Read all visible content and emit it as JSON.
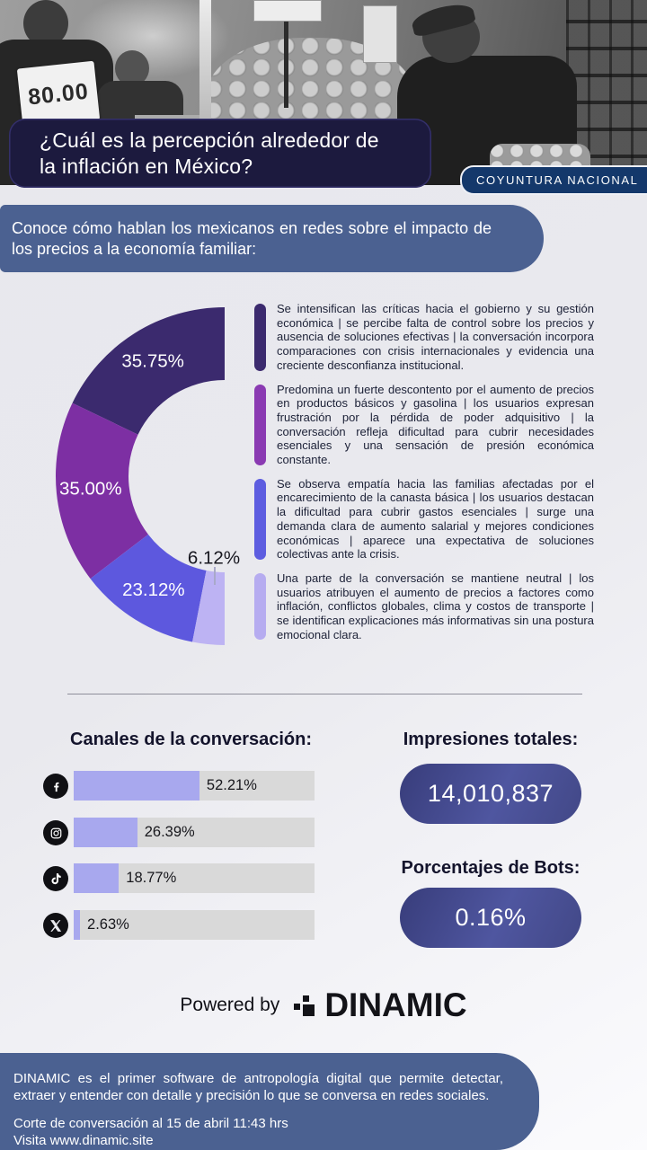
{
  "hero": {
    "price_sign": "80.00"
  },
  "header": {
    "title_lines": [
      "¿Cuál es la percepción alrededor de",
      "la inflación en México?"
    ],
    "badge": "COYUNTURA NACIONAL",
    "subtitle": "Conoce cómo hablan los mexicanos en redes sobre el impacto de los precios a la economía familiar:"
  },
  "chart_data": [
    {
      "type": "donut",
      "shape": "left-semicircle",
      "total_sweep_deg": 180,
      "unit": "%",
      "segments": [
        {
          "label": "35.75%",
          "value": 35.75,
          "color": "#3b2a6e"
        },
        {
          "label": "35.00%",
          "value": 35.0,
          "color": "#7d2fa3"
        },
        {
          "label": "23.12%",
          "value": 23.12,
          "color": "#5d58de"
        },
        {
          "label": "6.12%",
          "value": 6.12,
          "color": "#bdb3f3",
          "label_outside": true
        }
      ]
    },
    {
      "type": "bar",
      "orientation": "horizontal",
      "title": "Canales de la conversación:",
      "categories": [
        "Facebook",
        "Instagram",
        "TikTok",
        "X"
      ],
      "icons": [
        "facebook-icon",
        "instagram-icon",
        "tiktok-icon",
        "x-icon"
      ],
      "values": [
        52.21,
        26.39,
        18.77,
        2.63
      ],
      "value_labels": [
        "52.21%",
        "26.39%",
        "18.77%",
        "2.63%"
      ],
      "xlim": [
        0,
        100
      ],
      "bar_color": "#a8a8ee",
      "track_color": "#d9d9d9"
    }
  ],
  "insights": [
    {
      "color": "#3b2a6e",
      "text": "Se intensifican las críticas hacia el gobierno y su gestión económica | se percibe falta de control sobre los precios y ausencia de soluciones efectivas | la conversación incorpora comparaciones con crisis internacionales y evidencia una creciente desconfianza institucional."
    },
    {
      "color": "#8a3ab2",
      "text": "Predomina un fuerte descontento por el aumento de precios en productos básicos y gasolina | los usuarios expresan frustración por la pérdida de poder adquisitivo | la conversación refleja dificultad para cubrir necesidades esenciales y una sensación de presión económica constante."
    },
    {
      "color": "#5d5de0",
      "text": "Se observa empatía hacia las familias afectadas por el encarecimiento de la canasta básica | los usuarios destacan la dificultad para cubrir gastos esenciales | surge una demanda clara de aumento salarial y mejores condiciones económicas | aparece una expectativa de soluciones colectivas ante la crisis."
    },
    {
      "color": "#b6acf0",
      "text": "Una parte de la conversación se mantiene neutral | los usuarios atribuyen el aumento de precios a factores como inflación, conflictos globales, clima y costos de transporte | se identifican explicaciones más informativas sin una postura emocional clara."
    }
  ],
  "stats": {
    "impressions_heading": "Impresiones totales:",
    "impressions_value": "14,010,837",
    "bots_heading": "Porcentajes de Bots:",
    "bots_value": "0.16%"
  },
  "powered": {
    "prefix": "Powered by",
    "brand": "DINAMIC"
  },
  "footer": {
    "description": "DINAMIC es el primer software de antropología digital que permite detectar, extraer y entender con detalle y precisión lo que se conversa en redes sociales.",
    "cutoff": "Corte de conversación al 15 de abril 11:43 hrs",
    "visit": "Visita www.dinamic.site"
  }
}
